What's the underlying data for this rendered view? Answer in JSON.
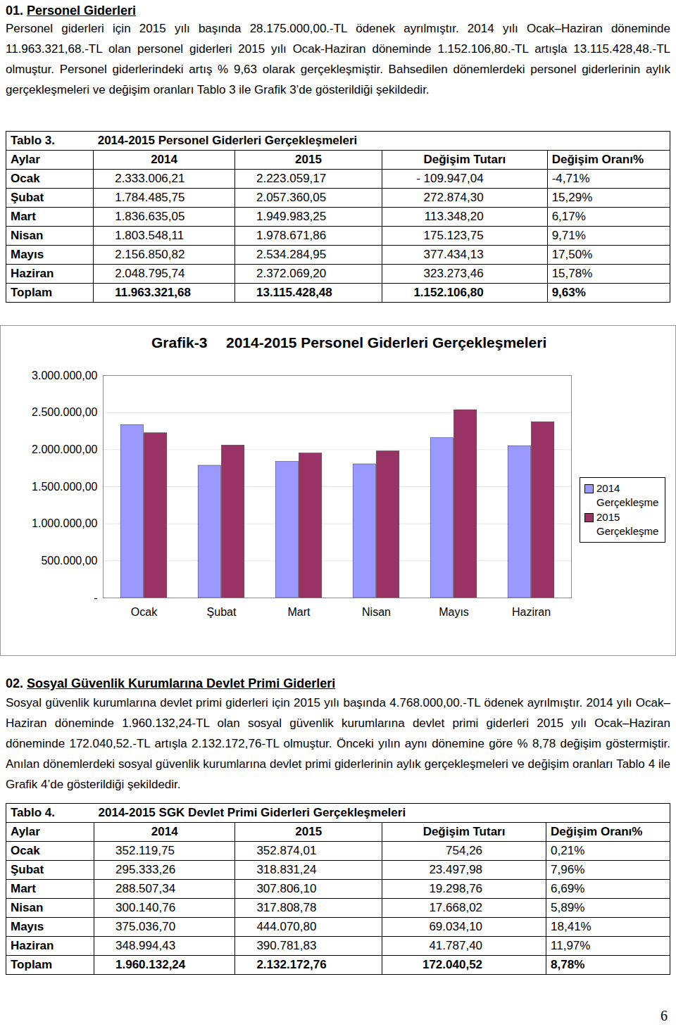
{
  "sections": [
    {
      "number": "01.",
      "title": "Personel Giderleri",
      "paragraph": "Personel giderleri için 2015 yılı başında 28.175.000,00.-TL ödenek ayrılmıştır. 2014 yılı Ocak–Haziran döneminde 11.963.321,68.-TL olan personel giderleri 2015 yılı Ocak-Haziran döneminde 1.152.106,80.-TL artışla 13.115.428,48.-TL olmuştur. Personel giderlerindeki artış % 9,63 olarak gerçekleşmiştir. Bahsedilen dönemlerdeki personel giderlerinin aylık gerçekleşmeleri ve değişim oranları Tablo 3 ile Grafik 3’de gösterildiği şekildedir.",
      "table": {
        "label": "Tablo 3.",
        "title": "2014-2015 Personel Giderleri Gerçekleşmeleri",
        "header": [
          "Aylar",
          "2014",
          "2015",
          "Değişim Tutarı",
          "Değişim Oranı%"
        ],
        "rows": [
          [
            "Ocak",
            "2.333.006,21",
            "2.223.059,17",
            "- 109.947,04",
            "-4,71%"
          ],
          [
            "Şubat",
            "1.784.485,75",
            "2.057.360,05",
            "272.874,30",
            "15,29%"
          ],
          [
            "Mart",
            "1.836.635,05",
            "1.949.983,25",
            "113.348,20",
            "6,17%"
          ],
          [
            "Nisan",
            "1.803.548,11",
            "1.978.671,86",
            "175.123,75",
            "9,71%"
          ],
          [
            "Mayıs",
            "2.156.850,82",
            "2.534.284,95",
            "377.434,13",
            "17,50%"
          ],
          [
            "Haziran",
            "2.048.795,74",
            "2.372.069,20",
            "323.273,46",
            "15,78%"
          ],
          [
            "Toplam",
            "11.963.321,68",
            "13.115.428,48",
            "1.152.106,80",
            "9,63%"
          ]
        ]
      }
    },
    {
      "number": "02.",
      "title": "Sosyal Güvenlik Kurumlarına Devlet Primi Giderleri",
      "paragraph": "Sosyal güvenlik kurumlarına devlet primi giderleri için 2015 yılı başında 4.768.000,00.-TL ödenek ayrılmıştır. 2014 yılı Ocak–Haziran döneminde 1.960.132,24-TL olan sosyal güvenlik kurumlarına devlet primi giderleri 2015 yılı Ocak–Haziran döneminde 172.040,52.-TL artışla 2.132.172,76-TL olmuştur. Önceki yılın aynı dönemine göre % 8,78 değişim göstermiştir. Anılan dönemlerdeki sosyal güvenlik kurumlarına devlet primi giderlerinin aylık gerçekleşmeleri ve değişim oranları Tablo 4 ile Grafik 4’de gösterildiği şekildedir.",
      "table": {
        "label": "Tablo 4.",
        "title": "2014-2015 SGK Devlet Primi Giderleri Gerçekleşmeleri",
        "header": [
          "Aylar",
          "2014",
          "2015",
          "Değişim Tutarı",
          "Değişim Oranı%"
        ],
        "rows": [
          [
            "Ocak",
            "352.119,75",
            "352.874,01",
            "754,26",
            "0,21%"
          ],
          [
            "Şubat",
            "295.333,26",
            "318.831,24",
            "23.497,98",
            "7,96%"
          ],
          [
            "Mart",
            "288.507,34",
            "307.806,10",
            "19.298,76",
            "6,69%"
          ],
          [
            "Nisan",
            "300.140,76",
            "317.808,78",
            "17.668,02",
            "5,89%"
          ],
          [
            "Mayıs",
            "375.036,70",
            "444.070,80",
            "69.034,10",
            "18,41%"
          ],
          [
            "Haziran",
            "348.994,43",
            "390.781,83",
            "41.787,40",
            "11,97%"
          ],
          [
            "Toplam",
            "1.960.132,24",
            "2.132.172,76",
            "172.040,52",
            "8,78%"
          ]
        ]
      }
    }
  ],
  "chart_data": {
    "type": "bar",
    "title": "Grafik-3",
    "subtitle": "2014-2015 Personel Giderleri Gerçekleşmeleri",
    "categories": [
      "Ocak",
      "Şubat",
      "Mart",
      "Nisan",
      "Mayıs",
      "Haziran"
    ],
    "series": [
      {
        "name": "2014 Gerçekleşme",
        "color": "#9999ff",
        "values": [
          2333006.21,
          1784485.75,
          1836635.05,
          1803548.11,
          2156850.82,
          2048795.74
        ]
      },
      {
        "name": "2015 Gerçekleşme",
        "color": "#993366",
        "values": [
          2223059.17,
          2057360.05,
          1949983.25,
          1978671.86,
          2534284.95,
          2372069.2
        ]
      }
    ],
    "ylim": [
      0,
      3000000
    ],
    "yticks": [
      {
        "value": 0,
        "label": "-"
      },
      {
        "value": 500000,
        "label": "500.000,00"
      },
      {
        "value": 1000000,
        "label": "1.000.000,00"
      },
      {
        "value": 1500000,
        "label": "1.500.000,00"
      },
      {
        "value": 2000000,
        "label": "2.000.000,00"
      },
      {
        "value": 2500000,
        "label": "2.500.000,00"
      },
      {
        "value": 3000000,
        "label": "3.000.000,00"
      }
    ],
    "grid": true,
    "legend": "right"
  },
  "page_number": "6"
}
